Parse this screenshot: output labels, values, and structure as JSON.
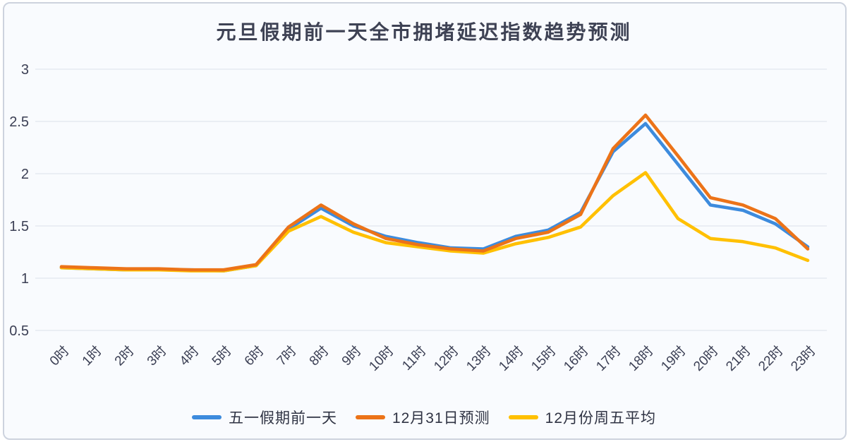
{
  "card": {
    "title": "元旦假期前一天全市拥堵延迟指数趋势预测"
  },
  "chart_data": {
    "type": "line",
    "title": "元旦假期前一天全市拥堵延迟指数趋势预测",
    "xlabel": "",
    "ylabel": "",
    "categories": [
      "0时",
      "1时",
      "2时",
      "3时",
      "4时",
      "5时",
      "6时",
      "7时",
      "8时",
      "9时",
      "10时",
      "11时",
      "12时",
      "13时",
      "14时",
      "15时",
      "16时",
      "17时",
      "18时",
      "19时",
      "20时",
      "21时",
      "22时",
      "23时"
    ],
    "series": [
      {
        "name": "五一假期前一天",
        "color": "#3d8bdd",
        "draw_order": 1,
        "values": [
          1.1,
          1.09,
          1.08,
          1.08,
          1.08,
          1.07,
          1.12,
          1.47,
          1.67,
          1.5,
          1.4,
          1.34,
          1.29,
          1.28,
          1.4,
          1.46,
          1.63,
          2.21,
          2.48,
          2.09,
          1.7,
          1.65,
          1.52,
          1.3
        ]
      },
      {
        "name": "12月31日预测",
        "color": "#ec7318",
        "draw_order": 3,
        "values": [
          1.11,
          1.1,
          1.09,
          1.09,
          1.08,
          1.08,
          1.13,
          1.49,
          1.7,
          1.52,
          1.38,
          1.32,
          1.28,
          1.26,
          1.38,
          1.44,
          1.61,
          2.24,
          2.56,
          2.17,
          1.77,
          1.7,
          1.57,
          1.28
        ]
      },
      {
        "name": "12月份周五平均",
        "color": "#ffc000",
        "draw_order": 2,
        "values": [
          1.1,
          1.09,
          1.08,
          1.08,
          1.07,
          1.07,
          1.12,
          1.45,
          1.59,
          1.44,
          1.34,
          1.3,
          1.26,
          1.24,
          1.33,
          1.39,
          1.49,
          1.79,
          2.01,
          1.57,
          1.38,
          1.35,
          1.29,
          1.17
        ]
      }
    ],
    "ylim": [
      0.5,
      3
    ],
    "yticks": [
      "3",
      "2.5",
      "2",
      "1.5",
      "1",
      "0.5"
    ],
    "grid": "horizontal",
    "legend_position": "bottom",
    "layout": {
      "x0": 87,
      "xstep": 46,
      "yTop": 98,
      "yBottom": 468,
      "gridLeft": 50,
      "gridRight": 1172,
      "tick_font_px": 19,
      "label_color": "#3b3f54",
      "grid_color": "#e2e7ee",
      "line_width": 4.6
    }
  }
}
